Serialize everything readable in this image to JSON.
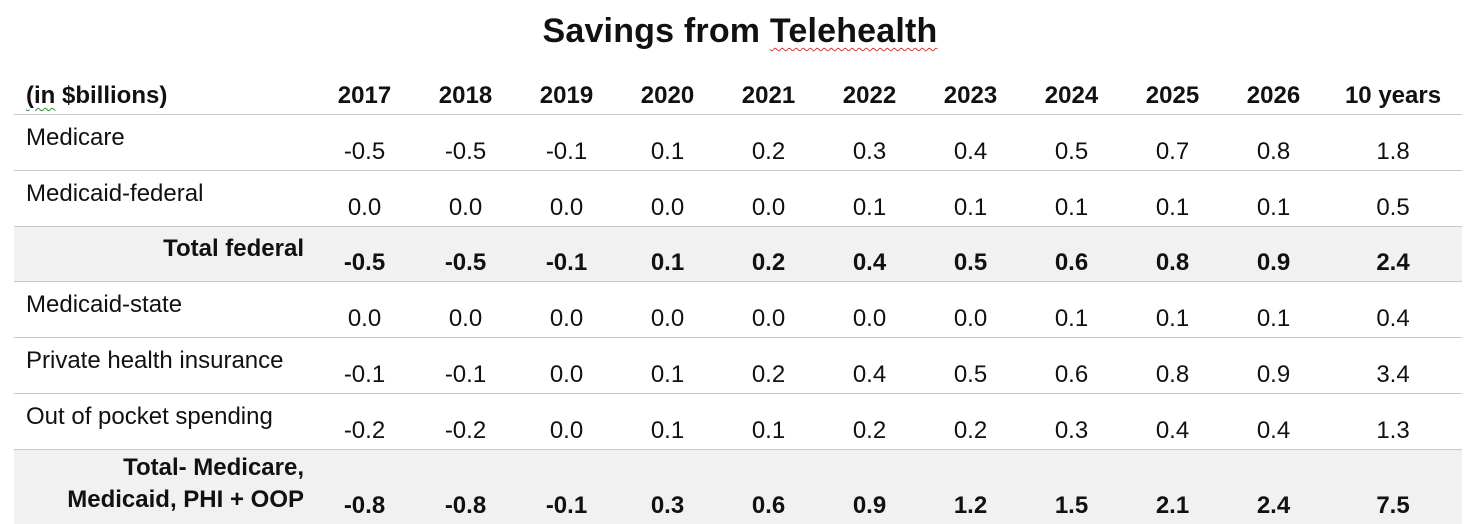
{
  "title_prefix": "Savings from ",
  "title_word": "Telehealth",
  "header": {
    "unit_word": "(in",
    "unit_rest": " $billions)",
    "years": [
      "2017",
      "2018",
      "2019",
      "2020",
      "2021",
      "2022",
      "2023",
      "2024",
      "2025",
      "2026"
    ],
    "total_label": "10 years"
  },
  "rows": [
    {
      "label": "Medicare",
      "values": [
        "-0.5",
        "-0.5",
        "-0.1",
        "0.1",
        "0.2",
        "0.3",
        "0.4",
        "0.5",
        "0.7",
        "0.8"
      ],
      "total": "1.8"
    },
    {
      "label": "Medicaid-federal",
      "values": [
        "0.0",
        "0.0",
        "0.0",
        "0.0",
        "0.0",
        "0.1",
        "0.1",
        "0.1",
        "0.1",
        "0.1"
      ],
      "total": "0.5"
    },
    {
      "label": "Total federal",
      "values": [
        "-0.5",
        "-0.5",
        "-0.1",
        "0.1",
        "0.2",
        "0.4",
        "0.5",
        "0.6",
        "0.8",
        "0.9"
      ],
      "total": "2.4"
    },
    {
      "label": "Medicaid-state",
      "values": [
        "0.0",
        "0.0",
        "0.0",
        "0.0",
        "0.0",
        "0.0",
        "0.0",
        "0.1",
        "0.1",
        "0.1"
      ],
      "total": "0.4"
    },
    {
      "label": "Private health insurance",
      "values": [
        "-0.1",
        "-0.1",
        "0.0",
        "0.1",
        "0.2",
        "0.4",
        "0.5",
        "0.6",
        "0.8",
        "0.9"
      ],
      "total": "3.4"
    },
    {
      "label": "Out of pocket spending",
      "values": [
        "-0.2",
        "-0.2",
        "0.0",
        "0.1",
        "0.1",
        "0.2",
        "0.2",
        "0.3",
        "0.4",
        "0.4"
      ],
      "total": "1.3"
    }
  ],
  "grand_total": {
    "label_line1": "Total- Medicare,",
    "label_line2": "Medicaid, PHI + OOP",
    "values": [
      "-0.8",
      "-0.8",
      "-0.1",
      "0.3",
      "0.6",
      "0.9",
      "1.2",
      "1.5",
      "2.1",
      "2.4"
    ],
    "total": "7.5"
  }
}
